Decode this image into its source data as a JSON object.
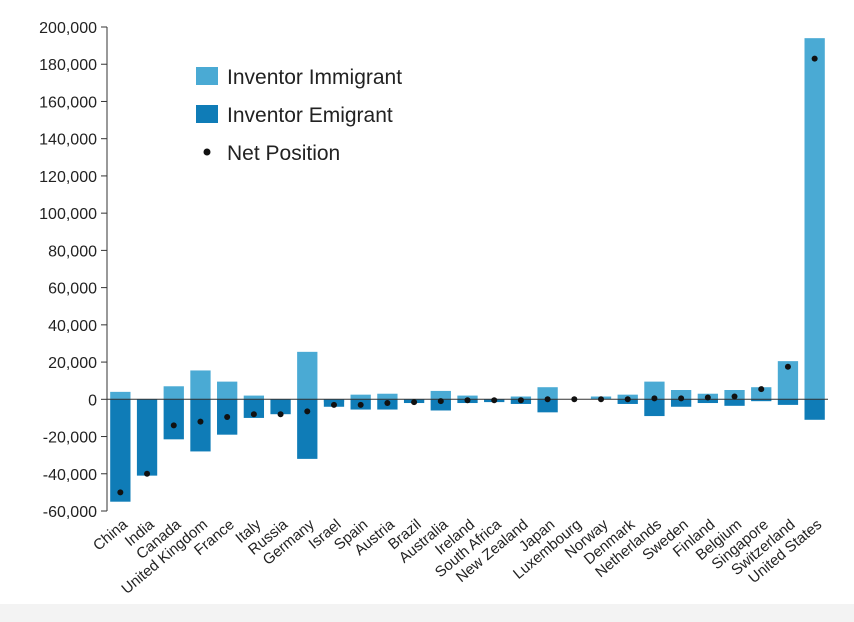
{
  "chart_data": {
    "type": "bar",
    "categories": [
      "China",
      "India",
      "Canada",
      "United Kingdom",
      "France",
      "Italy",
      "Russia",
      "Germany",
      "Israel",
      "Spain",
      "Austria",
      "Brazil",
      "Australia",
      "Ireland",
      "South Africa",
      "New Zealand",
      "Japan",
      "Luxembourg",
      "Norway",
      "Denmark",
      "Netherlands",
      "Sweden",
      "Finland",
      "Belgium",
      "Singapore",
      "Switzerland",
      "United States"
    ],
    "series": [
      {
        "name": "Inventor Immigrant",
        "color": "#4aaad4",
        "values": [
          4000,
          0,
          7000,
          15500,
          9500,
          2000,
          0,
          25500,
          -1500,
          2500,
          3000,
          -500,
          4500,
          2000,
          -500,
          1500,
          6500,
          0,
          1500,
          2500,
          9500,
          5000,
          3000,
          5000,
          6500,
          20500,
          194000
        ]
      },
      {
        "name": "Inventor Emigrant",
        "color": "#0f7cb7",
        "values": [
          -55000,
          -41000,
          -21500,
          -28000,
          -19000,
          -10000,
          -8000,
          -32000,
          -4000,
          -5500,
          -5500,
          -2000,
          -6000,
          -2000,
          -1500,
          -2500,
          -7000,
          0,
          0,
          -2500,
          -9000,
          -4000,
          -2000,
          -3500,
          -1000,
          -3000,
          -11000
        ]
      },
      {
        "name": "Net Position",
        "color": "#111111",
        "values": [
          -50000,
          -40000,
          -14000,
          -12000,
          -9500,
          -8000,
          -8000,
          -6500,
          -3000,
          -3000,
          -2000,
          -1500,
          -1000,
          -500,
          -500,
          -500,
          0,
          0,
          0,
          0,
          500,
          500,
          1000,
          1500,
          5500,
          17500,
          183000
        ]
      }
    ],
    "ylim": [
      -60000,
      200000
    ],
    "yticks": [
      -60000,
      -40000,
      -20000,
      0,
      20000,
      40000,
      60000,
      80000,
      100000,
      120000,
      140000,
      160000,
      180000,
      200000
    ],
    "ytick_labels": [
      "-60,000",
      "-40,000",
      "-20,000",
      "0",
      "20,000",
      "40,000",
      "60,000",
      "80,000",
      "100,000",
      "120,000",
      "140,000",
      "160,000",
      "180,000",
      "200,000"
    ],
    "grid": false,
    "legend_position": "top-left",
    "legend": {
      "immigrant_label": "Inventor Immigrant",
      "emigrant_label": "Inventor Emigrant",
      "net_label": "Net Position"
    }
  }
}
